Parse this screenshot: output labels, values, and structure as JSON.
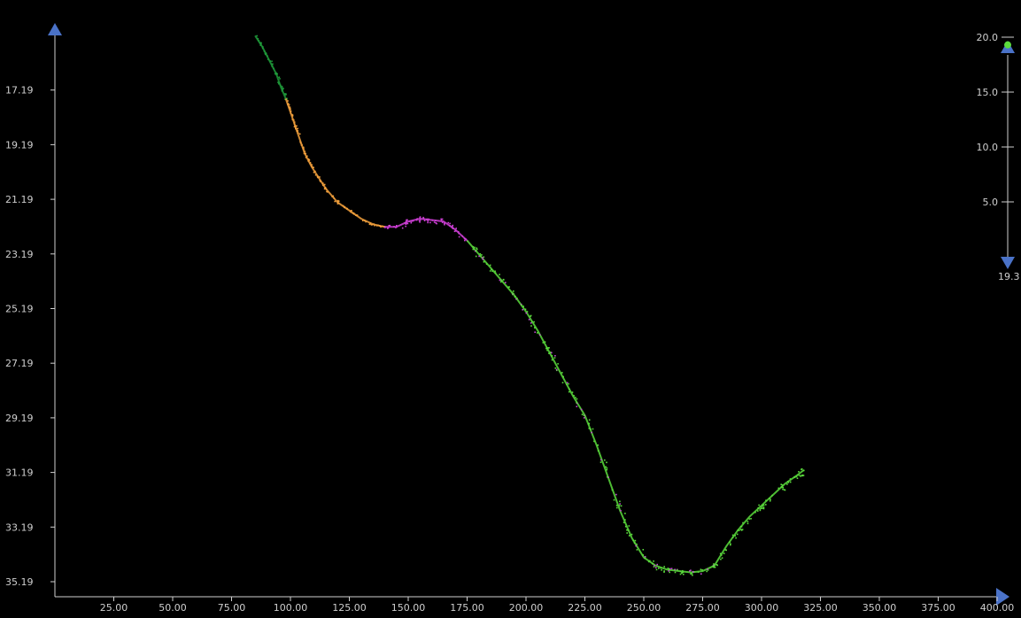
{
  "chart_data": {
    "type": "scatter",
    "title": "",
    "xlabel": "",
    "ylabel": "",
    "x_ticks": [
      "25.00",
      "50.00",
      "75.00",
      "100.00",
      "125.00",
      "150.00",
      "175.00",
      "200.00",
      "225.00",
      "250.00",
      "275.00",
      "300.00",
      "325.00",
      "350.00",
      "375.00",
      "400.00"
    ],
    "x_tick_values": [
      25,
      50,
      75,
      100,
      125,
      150,
      175,
      200,
      225,
      250,
      275,
      300,
      325,
      350,
      375,
      400
    ],
    "xlim": [
      0,
      400
    ],
    "y_ticks": [
      "17.19",
      "19.19",
      "21.19",
      "23.19",
      "25.19",
      "27.19",
      "29.19",
      "31.19",
      "33.19",
      "35.19"
    ],
    "y_tick_values": [
      17.19,
      19.19,
      21.19,
      23.19,
      25.19,
      27.19,
      29.19,
      31.19,
      33.19,
      35.19
    ],
    "ylim_top": 15.19,
    "ylim_bottom": 35.19,
    "y_inverted": true,
    "grid": false,
    "series": [
      {
        "color": "#1f9a3a",
        "points": [
          [
            85,
            15.2
          ],
          [
            88,
            15.6
          ],
          [
            91,
            16.1
          ],
          [
            94,
            16.6
          ],
          [
            96,
            17.1
          ],
          [
            98,
            17.5
          ]
        ]
      },
      {
        "color": "#f2a03c",
        "points": [
          [
            98,
            17.5
          ],
          [
            100,
            18.0
          ],
          [
            102,
            18.5
          ],
          [
            104,
            19.0
          ],
          [
            106,
            19.5
          ],
          [
            109,
            20.0
          ],
          [
            112,
            20.4
          ],
          [
            115,
            20.8
          ],
          [
            120,
            21.3
          ],
          [
            125,
            21.6
          ],
          [
            130,
            21.9
          ],
          [
            135,
            22.1
          ],
          [
            140,
            22.2
          ]
        ]
      },
      {
        "color": "#d040d8",
        "points": [
          [
            140,
            22.2
          ],
          [
            145,
            22.2
          ],
          [
            150,
            22.0
          ],
          [
            155,
            21.9
          ],
          [
            160,
            21.95
          ],
          [
            165,
            22.0
          ],
          [
            170,
            22.3
          ],
          [
            175,
            22.7
          ]
        ]
      },
      {
        "color": "#5bdc3c",
        "points": [
          [
            175,
            22.7
          ],
          [
            180,
            23.2
          ],
          [
            185,
            23.7
          ],
          [
            190,
            24.2
          ],
          [
            195,
            24.7
          ],
          [
            200,
            25.3
          ],
          [
            205,
            26.0
          ],
          [
            210,
            26.8
          ],
          [
            215,
            27.6
          ],
          [
            220,
            28.4
          ],
          [
            225,
            29.1
          ]
        ]
      },
      {
        "color": "#5bdc3c",
        "points": [
          [
            225,
            29.1
          ],
          [
            230,
            30.2
          ],
          [
            235,
            31.4
          ],
          [
            240,
            32.6
          ],
          [
            245,
            33.6
          ],
          [
            250,
            34.3
          ],
          [
            255,
            34.6
          ],
          [
            260,
            34.75
          ],
          [
            265,
            34.8
          ],
          [
            270,
            34.85
          ],
          [
            275,
            34.8
          ],
          [
            280,
            34.6
          ]
        ]
      },
      {
        "color": "#5bdc3c",
        "points": [
          [
            280,
            34.6
          ],
          [
            285,
            33.9
          ],
          [
            290,
            33.3
          ],
          [
            295,
            32.8
          ],
          [
            300,
            32.4
          ],
          [
            305,
            32.0
          ],
          [
            310,
            31.6
          ],
          [
            315,
            31.3
          ],
          [
            318,
            31.1
          ]
        ]
      }
    ],
    "legend": {
      "position": "right",
      "ticks": [
        "20.0",
        "15.0",
        "10.0",
        "5.0"
      ],
      "tick_values": [
        20,
        15,
        10,
        5
      ],
      "range": [
        0,
        20
      ],
      "bottom_label": "19.3",
      "marker_value": 19.3,
      "marker_color": "#5bdc3c"
    },
    "axis_arrow_color": "#4a72c8"
  }
}
